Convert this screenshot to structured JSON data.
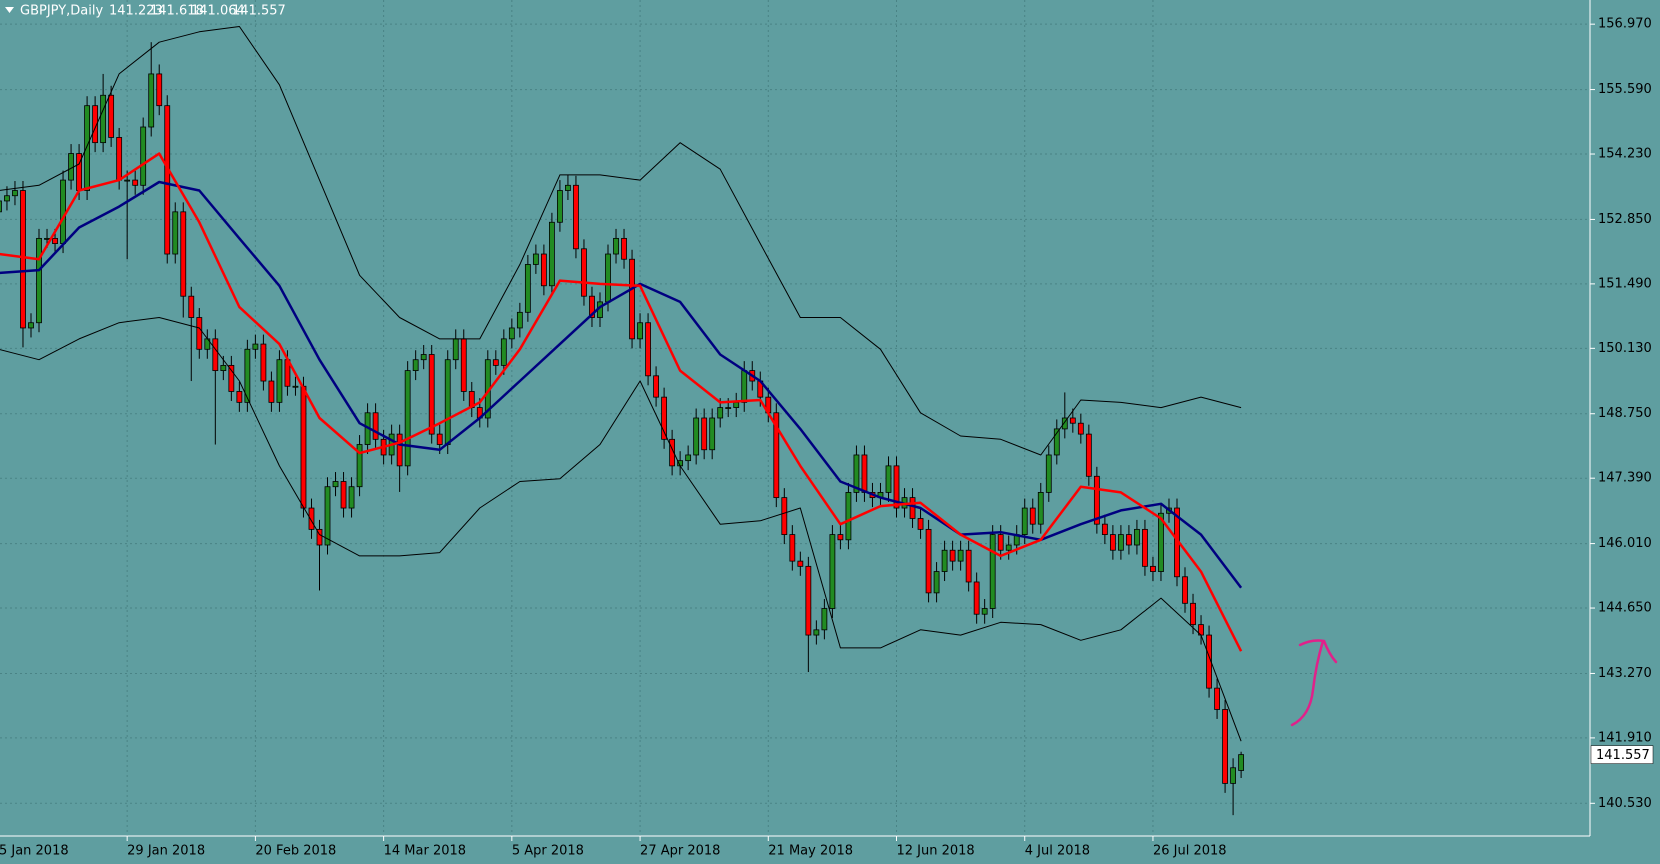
{
  "chart_data": {
    "type": "candlestick",
    "title": "GBPJPY,Daily",
    "categories": [
      "5 Jan 2018",
      null,
      null,
      null,
      null,
      null,
      null,
      null,
      null,
      null,
      null,
      null,
      null,
      null,
      null,
      null,
      "29 Jan 2018",
      null,
      null,
      null,
      null,
      null,
      null,
      null,
      null,
      null,
      null,
      null,
      null,
      null,
      null,
      null,
      "20 Feb 2018",
      null,
      null,
      null,
      null,
      null,
      null,
      null,
      null,
      null,
      null,
      null,
      null,
      null,
      null,
      null,
      "14 Mar 2018",
      null,
      null,
      null,
      null,
      null,
      null,
      null,
      null,
      null,
      null,
      null,
      null,
      null,
      null,
      null,
      "5 Apr 2018",
      null,
      null,
      null,
      null,
      null,
      null,
      null,
      null,
      null,
      null,
      null,
      null,
      null,
      null,
      null,
      "27 Apr 2018",
      null,
      null,
      null,
      null,
      null,
      null,
      null,
      null,
      null,
      null,
      null,
      null,
      null,
      null,
      null,
      "21 May 2018",
      null,
      null,
      null,
      null,
      null,
      null,
      null,
      null,
      null,
      null,
      null,
      null,
      null,
      null,
      null,
      "12 Jun 2018",
      null,
      null,
      null,
      null,
      null,
      null,
      null,
      null,
      null,
      null,
      null,
      null,
      null,
      null,
      null,
      "4 Jul 2018",
      null,
      null,
      null,
      null,
      null,
      null,
      null,
      null,
      null,
      null,
      null,
      null,
      null,
      null,
      null,
      "26 Jul 2018",
      null,
      null,
      null,
      null,
      null,
      null,
      null,
      null,
      null,
      null,
      null
    ],
    "open": [
      153.01,
      153.24,
      153.35,
      153.46,
      150.56,
      150.67,
      152.45,
      152.45,
      152.34,
      153.68,
      154.24,
      153.46,
      155.25,
      154.47,
      155.47,
      154.58,
      153.68,
      153.68,
      153.57,
      154.8,
      155.92,
      155.25,
      152.12,
      153.01,
      151.23,
      150.78,
      150.11,
      150.33,
      149.66,
      149.77,
      149.22,
      148.99,
      150.11,
      150.22,
      149.44,
      148.99,
      149.89,
      149.33,
      149.33,
      146.76,
      146.31,
      145.98,
      147.21,
      147.32,
      146.76,
      147.21,
      148.1,
      148.77,
      148.21,
      147.88,
      148.32,
      147.65,
      149.66,
      149.89,
      150.0,
      148.32,
      148.1,
      149.89,
      150.33,
      149.22,
      148.88,
      148.66,
      149.89,
      149.77,
      150.33,
      150.56,
      150.89,
      151.9,
      152.12,
      151.45,
      152.79,
      153.46,
      153.57,
      152.23,
      151.23,
      150.78,
      151.11,
      152.12,
      152.45,
      152.01,
      150.33,
      150.67,
      149.55,
      149.1,
      148.21,
      147.65,
      147.76,
      147.88,
      148.66,
      147.99,
      148.66,
      148.88,
      148.88,
      148.99,
      149.66,
      149.44,
      149.1,
      148.77,
      146.98,
      146.2,
      145.64,
      145.53,
      144.08,
      144.19,
      144.64,
      146.2,
      146.09,
      147.09,
      147.88,
      147.09,
      146.98,
      147.09,
      147.65,
      146.76,
      146.98,
      146.54,
      146.31,
      144.97,
      145.42,
      145.87,
      145.64,
      145.87,
      145.2,
      144.52,
      144.64,
      146.2,
      145.87,
      145.98,
      146.2,
      146.76,
      146.42,
      147.09,
      147.88,
      148.43,
      148.66,
      148.55,
      148.32,
      147.43,
      146.42,
      146.2,
      145.87,
      146.2,
      145.98,
      146.31,
      145.53,
      145.42,
      146.65,
      146.76,
      145.31,
      144.75,
      144.3,
      144.08,
      142.96,
      142.51,
      140.95,
      141.223
    ],
    "high": [
      153.44,
      153.55,
      153.66,
      153.66,
      150.87,
      152.65,
      152.65,
      152.65,
      153.88,
      154.44,
      154.44,
      155.45,
      155.45,
      155.92,
      155.67,
      154.78,
      153.88,
      153.88,
      155.0,
      156.59,
      156.12,
      155.47,
      153.21,
      153.21,
      151.43,
      150.98,
      150.53,
      150.53,
      149.97,
      149.97,
      149.42,
      150.31,
      150.42,
      150.42,
      149.64,
      150.09,
      150.09,
      149.53,
      149.53,
      146.96,
      146.51,
      147.41,
      147.52,
      147.52,
      147.41,
      148.3,
      148.97,
      148.97,
      148.41,
      148.52,
      148.52,
      149.86,
      150.09,
      150.2,
      150.2,
      148.52,
      150.09,
      150.53,
      150.53,
      149.42,
      149.08,
      150.09,
      150.09,
      150.53,
      150.76,
      151.09,
      152.1,
      152.32,
      152.32,
      152.99,
      153.68,
      153.79,
      153.77,
      152.43,
      151.43,
      151.31,
      152.32,
      152.65,
      152.65,
      152.21,
      150.87,
      150.87,
      149.75,
      149.3,
      148.41,
      147.96,
      148.08,
      148.86,
      148.86,
      148.86,
      149.08,
      149.08,
      149.19,
      149.86,
      149.86,
      149.64,
      149.3,
      148.97,
      147.18,
      146.4,
      145.84,
      145.73,
      144.39,
      144.84,
      146.4,
      146.4,
      147.29,
      148.08,
      148.08,
      147.29,
      147.29,
      147.85,
      147.85,
      147.18,
      147.18,
      146.74,
      146.51,
      145.62,
      146.07,
      146.07,
      146.07,
      146.07,
      145.4,
      144.84,
      146.4,
      146.4,
      146.18,
      146.4,
      146.96,
      146.96,
      147.29,
      148.08,
      148.63,
      149.2,
      148.86,
      148.75,
      148.52,
      147.63,
      146.62,
      146.4,
      146.4,
      146.4,
      146.51,
      146.51,
      145.73,
      146.85,
      146.96,
      146.96,
      145.51,
      144.95,
      144.5,
      144.28,
      143.16,
      142.71,
      141.48,
      141.618
    ],
    "low": [
      152.81,
      153.04,
      153.15,
      150.15,
      150.36,
      150.47,
      152.25,
      152.14,
      152.14,
      153.48,
      153.26,
      153.26,
      154.27,
      154.27,
      154.38,
      153.48,
      152.01,
      153.37,
      153.37,
      154.6,
      155.05,
      151.92,
      151.92,
      150.78,
      149.44,
      149.91,
      149.91,
      148.1,
      149.46,
      149.02,
      148.79,
      148.79,
      149.91,
      149.24,
      148.79,
      148.79,
      149.13,
      149.13,
      146.56,
      146.11,
      145.02,
      145.78,
      147.01,
      146.56,
      146.56,
      147.01,
      147.9,
      148.01,
      147.68,
      147.68,
      147.1,
      147.45,
      149.46,
      149.69,
      148.12,
      147.9,
      147.9,
      149.69,
      149.02,
      148.68,
      148.46,
      148.46,
      149.57,
      149.57,
      150.13,
      150.36,
      150.69,
      151.7,
      151.25,
      151.25,
      152.59,
      153.26,
      152.03,
      151.03,
      150.58,
      150.58,
      150.91,
      151.92,
      151.81,
      150.13,
      150.13,
      149.35,
      148.9,
      148.01,
      147.45,
      147.45,
      147.56,
      147.68,
      147.79,
      147.79,
      148.46,
      148.68,
      148.68,
      148.79,
      149.24,
      148.9,
      148.57,
      146.78,
      146.0,
      145.44,
      145.33,
      143.3,
      143.88,
      143.99,
      144.44,
      145.89,
      145.89,
      146.89,
      146.89,
      146.78,
      146.78,
      146.89,
      146.56,
      146.56,
      146.34,
      146.11,
      144.77,
      144.77,
      145.22,
      145.44,
      145.44,
      145.0,
      144.32,
      144.32,
      144.44,
      145.67,
      145.67,
      145.78,
      146.0,
      146.22,
      146.22,
      146.89,
      147.68,
      148.23,
      148.35,
      148.12,
      147.23,
      146.22,
      146.0,
      145.67,
      145.67,
      145.78,
      145.78,
      145.33,
      145.22,
      145.22,
      146.45,
      145.11,
      144.55,
      144.1,
      143.88,
      142.76,
      142.31,
      140.75,
      140.28,
      141.064
    ],
    "close": [
      153.24,
      153.35,
      153.46,
      150.56,
      150.67,
      152.45,
      152.45,
      152.34,
      153.68,
      154.24,
      153.46,
      155.25,
      154.47,
      155.47,
      154.58,
      153.68,
      153.68,
      153.57,
      154.8,
      155.92,
      155.25,
      152.12,
      153.01,
      151.23,
      150.78,
      150.11,
      150.33,
      149.66,
      149.77,
      149.22,
      148.99,
      150.11,
      150.22,
      149.44,
      148.99,
      149.89,
      149.33,
      149.33,
      146.76,
      146.31,
      145.98,
      147.21,
      147.32,
      146.76,
      147.21,
      148.1,
      148.77,
      148.21,
      147.88,
      148.32,
      147.65,
      149.66,
      149.89,
      150.0,
      148.32,
      148.1,
      149.89,
      150.33,
      149.22,
      148.88,
      148.66,
      149.89,
      149.77,
      150.33,
      150.56,
      150.89,
      151.9,
      152.12,
      151.45,
      152.79,
      153.46,
      153.57,
      152.23,
      151.23,
      150.78,
      151.11,
      152.12,
      152.45,
      152.01,
      150.33,
      150.67,
      149.55,
      149.1,
      148.21,
      147.65,
      147.76,
      147.88,
      148.66,
      147.99,
      148.66,
      148.88,
      148.88,
      148.99,
      149.66,
      149.44,
      149.1,
      148.77,
      146.98,
      146.2,
      145.64,
      145.53,
      144.08,
      144.19,
      144.64,
      146.2,
      146.09,
      147.09,
      147.88,
      147.09,
      146.98,
      147.09,
      147.65,
      146.76,
      146.98,
      146.54,
      146.31,
      144.97,
      145.42,
      145.87,
      145.64,
      145.87,
      145.2,
      144.52,
      144.64,
      146.2,
      145.87,
      145.98,
      146.2,
      146.76,
      146.42,
      147.09,
      147.88,
      148.43,
      148.66,
      148.55,
      148.32,
      147.43,
      146.42,
      146.2,
      145.87,
      146.2,
      145.98,
      146.31,
      145.53,
      145.42,
      146.65,
      146.76,
      145.31,
      144.75,
      144.3,
      144.08,
      142.96,
      142.51,
      140.95,
      141.28,
      141.557
    ],
    "up_color": "#228b22",
    "down_color": "#ff0000",
    "overlays": [
      {
        "color": "#000000",
        "values": [
          153.46,
          153.57,
          154.02,
          155.92,
          156.59,
          156.81,
          156.92,
          155.69,
          153.68,
          151.67,
          150.78,
          150.33,
          150.33,
          151.9,
          153.79,
          153.79,
          153.68,
          154.47,
          153.91,
          152.34,
          150.78,
          150.78,
          150.11,
          148.77,
          148.28,
          148.21,
          147.88,
          149.04,
          148.99,
          148.88,
          149.1,
          148.88
        ]
      },
      {
        "color": "#000000",
        "values": [
          150.11,
          149.89,
          150.33,
          150.67,
          150.78,
          150.56,
          149.44,
          147.65,
          146.2,
          145.75,
          145.75,
          145.82,
          146.76,
          147.32,
          147.38,
          148.1,
          149.44,
          147.65,
          146.42,
          146.49,
          146.76,
          143.81,
          143.81,
          144.19,
          144.08,
          144.35,
          144.3,
          143.97,
          144.19,
          144.86,
          144.08,
          141.84
        ]
      },
      {
        "color": "#000080",
        "values": [
          151.72,
          151.78,
          152.68,
          153.12,
          153.64,
          153.46,
          152.45,
          151.45,
          149.89,
          148.55,
          148.1,
          147.99,
          148.66,
          149.44,
          150.22,
          151.0,
          151.49,
          151.11,
          150.0,
          149.44,
          148.43,
          147.32,
          146.98,
          146.76,
          146.2,
          146.25,
          146.09,
          146.42,
          146.71,
          146.85,
          146.2,
          145.08
        ]
      },
      {
        "color": "#ff0000",
        "values": [
          152.12,
          152.01,
          153.46,
          153.68,
          154.24,
          152.79,
          151.0,
          150.22,
          148.66,
          147.92,
          148.14,
          148.55,
          148.99,
          150.11,
          151.56,
          151.49,
          151.45,
          149.66,
          148.99,
          149.04,
          147.65,
          146.42,
          146.8,
          146.87,
          146.2,
          145.75,
          146.09,
          147.21,
          147.09,
          146.54,
          145.42,
          143.74
        ]
      }
    ],
    "ylim": [
      139.84,
      157.48
    ],
    "yticks": [
      {
        "value": 156.97,
        "label": "156.970"
      },
      {
        "value": 155.59,
        "label": "155.590"
      },
      {
        "value": 154.23,
        "label": "154.230"
      },
      {
        "value": 152.85,
        "label": "152.850"
      },
      {
        "value": 151.49,
        "label": "151.490"
      },
      {
        "value": 150.13,
        "label": "150.130"
      },
      {
        "value": 148.75,
        "label": "148.750"
      },
      {
        "value": 147.39,
        "label": "147.390"
      },
      {
        "value": 146.01,
        "label": "146.010"
      },
      {
        "value": 144.65,
        "label": "144.650"
      },
      {
        "value": 143.27,
        "label": "143.270"
      },
      {
        "value": 141.91,
        "label": "141.910"
      },
      {
        "value": 140.53,
        "label": "140.530"
      }
    ],
    "grid": true
  }
}
